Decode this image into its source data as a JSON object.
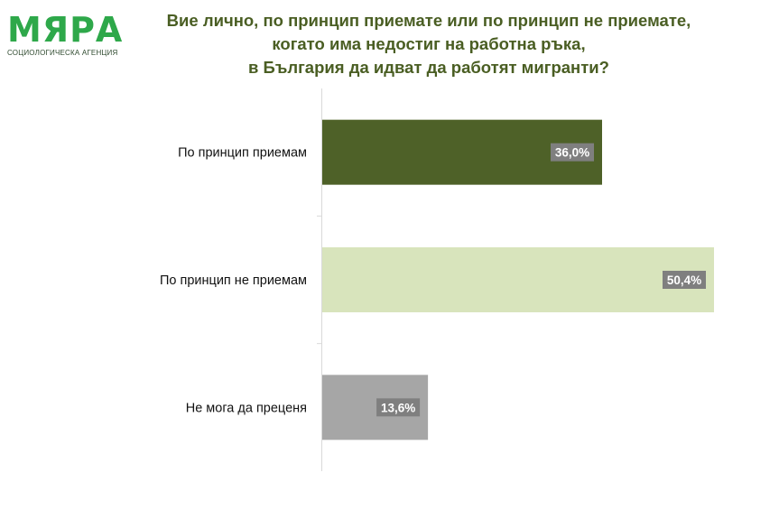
{
  "logo": {
    "word": "МЯРА",
    "subtitle": "СОЦИОЛОГИЧЕСКА АГЕНЦИЯ"
  },
  "colors": {
    "title": "#4a5e23",
    "logo": "#2ea84a",
    "label_box": "#7f7f7f",
    "axis": "#d9d9d9"
  },
  "chart_data": {
    "type": "bar",
    "orientation": "horizontal",
    "title_lines": [
      "Вие лично, по принцип приемате или по принцип не приемате,",
      "когато има недостиг на работна ръка,",
      "в България да идват да работят мигранти?"
    ],
    "categories": [
      "По принцип приемам",
      "По принцип не приемам",
      "Не мога да преценя"
    ],
    "values": [
      36.0,
      50.4,
      13.6
    ],
    "value_labels": [
      "36,0%",
      "50,4%",
      "13,6%"
    ],
    "bar_colors": [
      "#4e6128",
      "#d8e4bc",
      "#a6a6a6"
    ],
    "xlim": [
      0,
      50.4
    ],
    "grid": false,
    "legend": "none"
  }
}
